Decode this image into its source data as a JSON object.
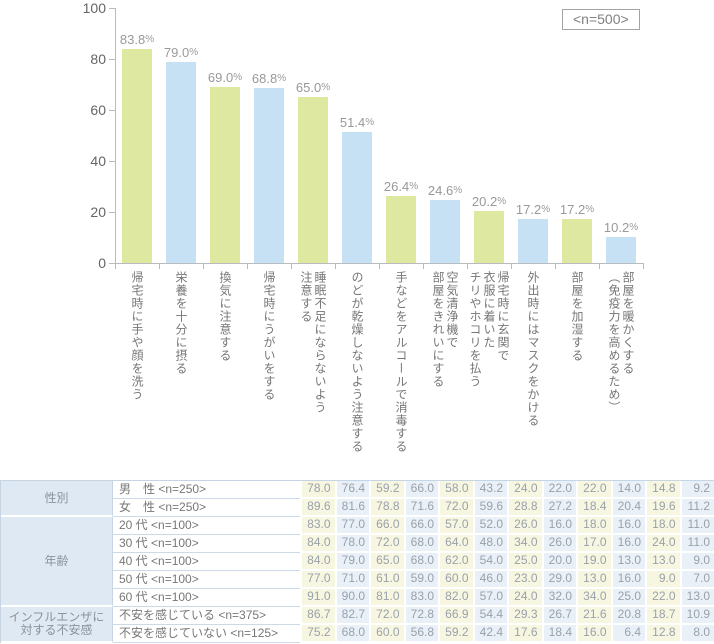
{
  "chart_data": {
    "type": "bar",
    "title": "",
    "annotation": "<n=500>",
    "categories": [
      "帰宅時に手や顔を洗う",
      "栄養を十分に摂る",
      "換気に注意する",
      "帰宅時にうがいをする",
      "睡眠不足にならないよう\n注意する",
      "のどが乾燥しないよう注意する",
      "手などをアルコールで消毒する",
      "空気清浄機で\n部屋をきれいにする",
      "帰宅時に玄関で\n衣服に着いた\nチリやホコリを払う",
      "外出時にはマスクをかける",
      "部屋を加湿する",
      "部屋を暖かくする\n（免疫力を高めるため）"
    ],
    "values": [
      83.8,
      79.0,
      69.0,
      68.8,
      65.0,
      51.4,
      26.4,
      24.6,
      20.2,
      17.2,
      17.2,
      10.2
    ],
    "value_suffix": "%",
    "xlabel": "",
    "ylabel": "",
    "ylim": [
      0,
      100
    ],
    "y_ticks": [
      0,
      20,
      40,
      60,
      80,
      100
    ],
    "grid": false,
    "legend": "none",
    "bar_color_odd": "#dfe8a1",
    "bar_color_even": "#c6e1f4"
  },
  "table": {
    "cell_color_odd": "#f7f7e1",
    "cell_color_even": "#e9f0f8",
    "group_bg": "#dfe9f3",
    "groups": [
      {
        "label": "性別",
        "rows": [
          {
            "label": "男　性 <n=250>",
            "values": [
              78.0,
              76.4,
              59.2,
              66.0,
              58.0,
              43.2,
              24.0,
              22.0,
              22.0,
              14.0,
              14.8,
              9.2
            ]
          },
          {
            "label": "女　性 <n=250>",
            "values": [
              89.6,
              81.6,
              78.8,
              71.6,
              72.0,
              59.6,
              28.8,
              27.2,
              18.4,
              20.4,
              19.6,
              11.2
            ]
          }
        ]
      },
      {
        "label": "年齢",
        "rows": [
          {
            "label": "20 代 <n=100>",
            "values": [
              83.0,
              77.0,
              66.0,
              66.0,
              57.0,
              52.0,
              26.0,
              16.0,
              18.0,
              16.0,
              18.0,
              11.0
            ]
          },
          {
            "label": "30 代 <n=100>",
            "values": [
              84.0,
              78.0,
              72.0,
              68.0,
              64.0,
              48.0,
              34.0,
              26.0,
              17.0,
              16.0,
              24.0,
              11.0
            ]
          },
          {
            "label": "40 代 <n=100>",
            "values": [
              84.0,
              79.0,
              65.0,
              68.0,
              62.0,
              54.0,
              25.0,
              20.0,
              19.0,
              13.0,
              13.0,
              9.0
            ]
          },
          {
            "label": "50 代 <n=100>",
            "values": [
              77.0,
              71.0,
              61.0,
              59.0,
              60.0,
              46.0,
              23.0,
              29.0,
              13.0,
              16.0,
              9.0,
              7.0
            ]
          },
          {
            "label": "60 代 <n=100>",
            "values": [
              91.0,
              90.0,
              81.0,
              83.0,
              82.0,
              57.0,
              24.0,
              32.0,
              34.0,
              25.0,
              22.0,
              13.0
            ]
          }
        ]
      },
      {
        "label": "インフルエンザに\n対する不安感",
        "rows": [
          {
            "label": "不安を感じている <n=375>",
            "values": [
              86.7,
              82.7,
              72.0,
              72.8,
              66.9,
              54.4,
              29.3,
              26.7,
              21.6,
              20.8,
              18.7,
              10.9
            ]
          },
          {
            "label": "不安を感じていない <n=125>",
            "values": [
              75.2,
              68.0,
              60.0,
              56.8,
              59.2,
              42.4,
              17.6,
              18.4,
              16.0,
              6.4,
              12.8,
              8.0
            ]
          }
        ]
      }
    ]
  }
}
